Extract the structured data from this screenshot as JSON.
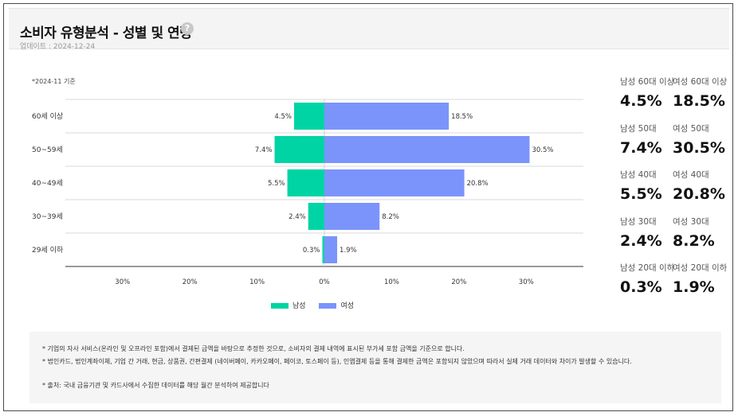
{
  "header": {
    "title": "소비자 유형분석 - 성별 및 연령",
    "help_icon": "?",
    "updated": "업데이트 : 2024-12-24"
  },
  "basis_note": "*2024-11 기준",
  "colors": {
    "male": "#00D4A4",
    "female": "#7B94FB"
  },
  "chart_data": {
    "type": "bar",
    "orientation": "horizontal-diverging",
    "categories": [
      "60세 이상",
      "50~59세",
      "40~49세",
      "30~39세",
      "29세 이하"
    ],
    "series": [
      {
        "name": "남성",
        "values": [
          4.5,
          7.4,
          5.5,
          2.4,
          0.3
        ],
        "labels": [
          "4.5%",
          "7.4%",
          "5.5%",
          "2.4%",
          "0.3%"
        ]
      },
      {
        "name": "여성",
        "values": [
          18.5,
          30.5,
          20.8,
          8.2,
          1.9
        ],
        "labels": [
          "18.5%",
          "30.5%",
          "20.8%",
          "8.2%",
          "1.9%"
        ]
      }
    ],
    "xticks": [
      "30%",
      "20%",
      "10%",
      "0%",
      "10%",
      "20%",
      "30%"
    ],
    "xtick_values": [
      -30,
      -20,
      -10,
      0,
      10,
      20,
      30
    ],
    "xlim": [
      -38.5,
      38.5
    ],
    "legend_position": "bottom"
  },
  "legend": {
    "male": "남성",
    "female": "여성"
  },
  "stats": [
    {
      "male_label": "남성 60대 이상",
      "male_value": "4.5%",
      "female_label": "여성 60대 이상",
      "female_value": "18.5%"
    },
    {
      "male_label": "남성 50대",
      "male_value": "7.4%",
      "female_label": "여성 50대",
      "female_value": "30.5%"
    },
    {
      "male_label": "남성 40대",
      "male_value": "5.5%",
      "female_label": "여성 40대",
      "female_value": "20.8%"
    },
    {
      "male_label": "남성 30대",
      "male_value": "2.4%",
      "female_label": "여성 30대",
      "female_value": "8.2%"
    },
    {
      "male_label": "남성 20대 이하",
      "male_value": "0.3%",
      "female_label": "여성 20대 이하",
      "female_value": "1.9%"
    }
  ],
  "notes": [
    "* 기업의 자사 서비스(온라인 및 오프라인 포함)에서 결제된 금액을 바탕으로 추정한 것으로, 소비자의 결제 내역에 표시된 부가세 포함 금액을 기준으로 합니다.",
    "* 법인카드, 법인계좌이체, 기업 간 거래, 현금, 상품권, 간편결제 (네이버페이, 카카오페이, 페이코, 토스페이 등), 인앱결제 등을 통해 결제한 금액은 포함되지 않았으며 따라서 실제 거래 데이터와 차이가 발생할 수 있습니다.",
    "* 출처:   국내 금융기관 및 카드사에서 수집한 데이터를 해당 월간 분석하여 제공합니다"
  ]
}
